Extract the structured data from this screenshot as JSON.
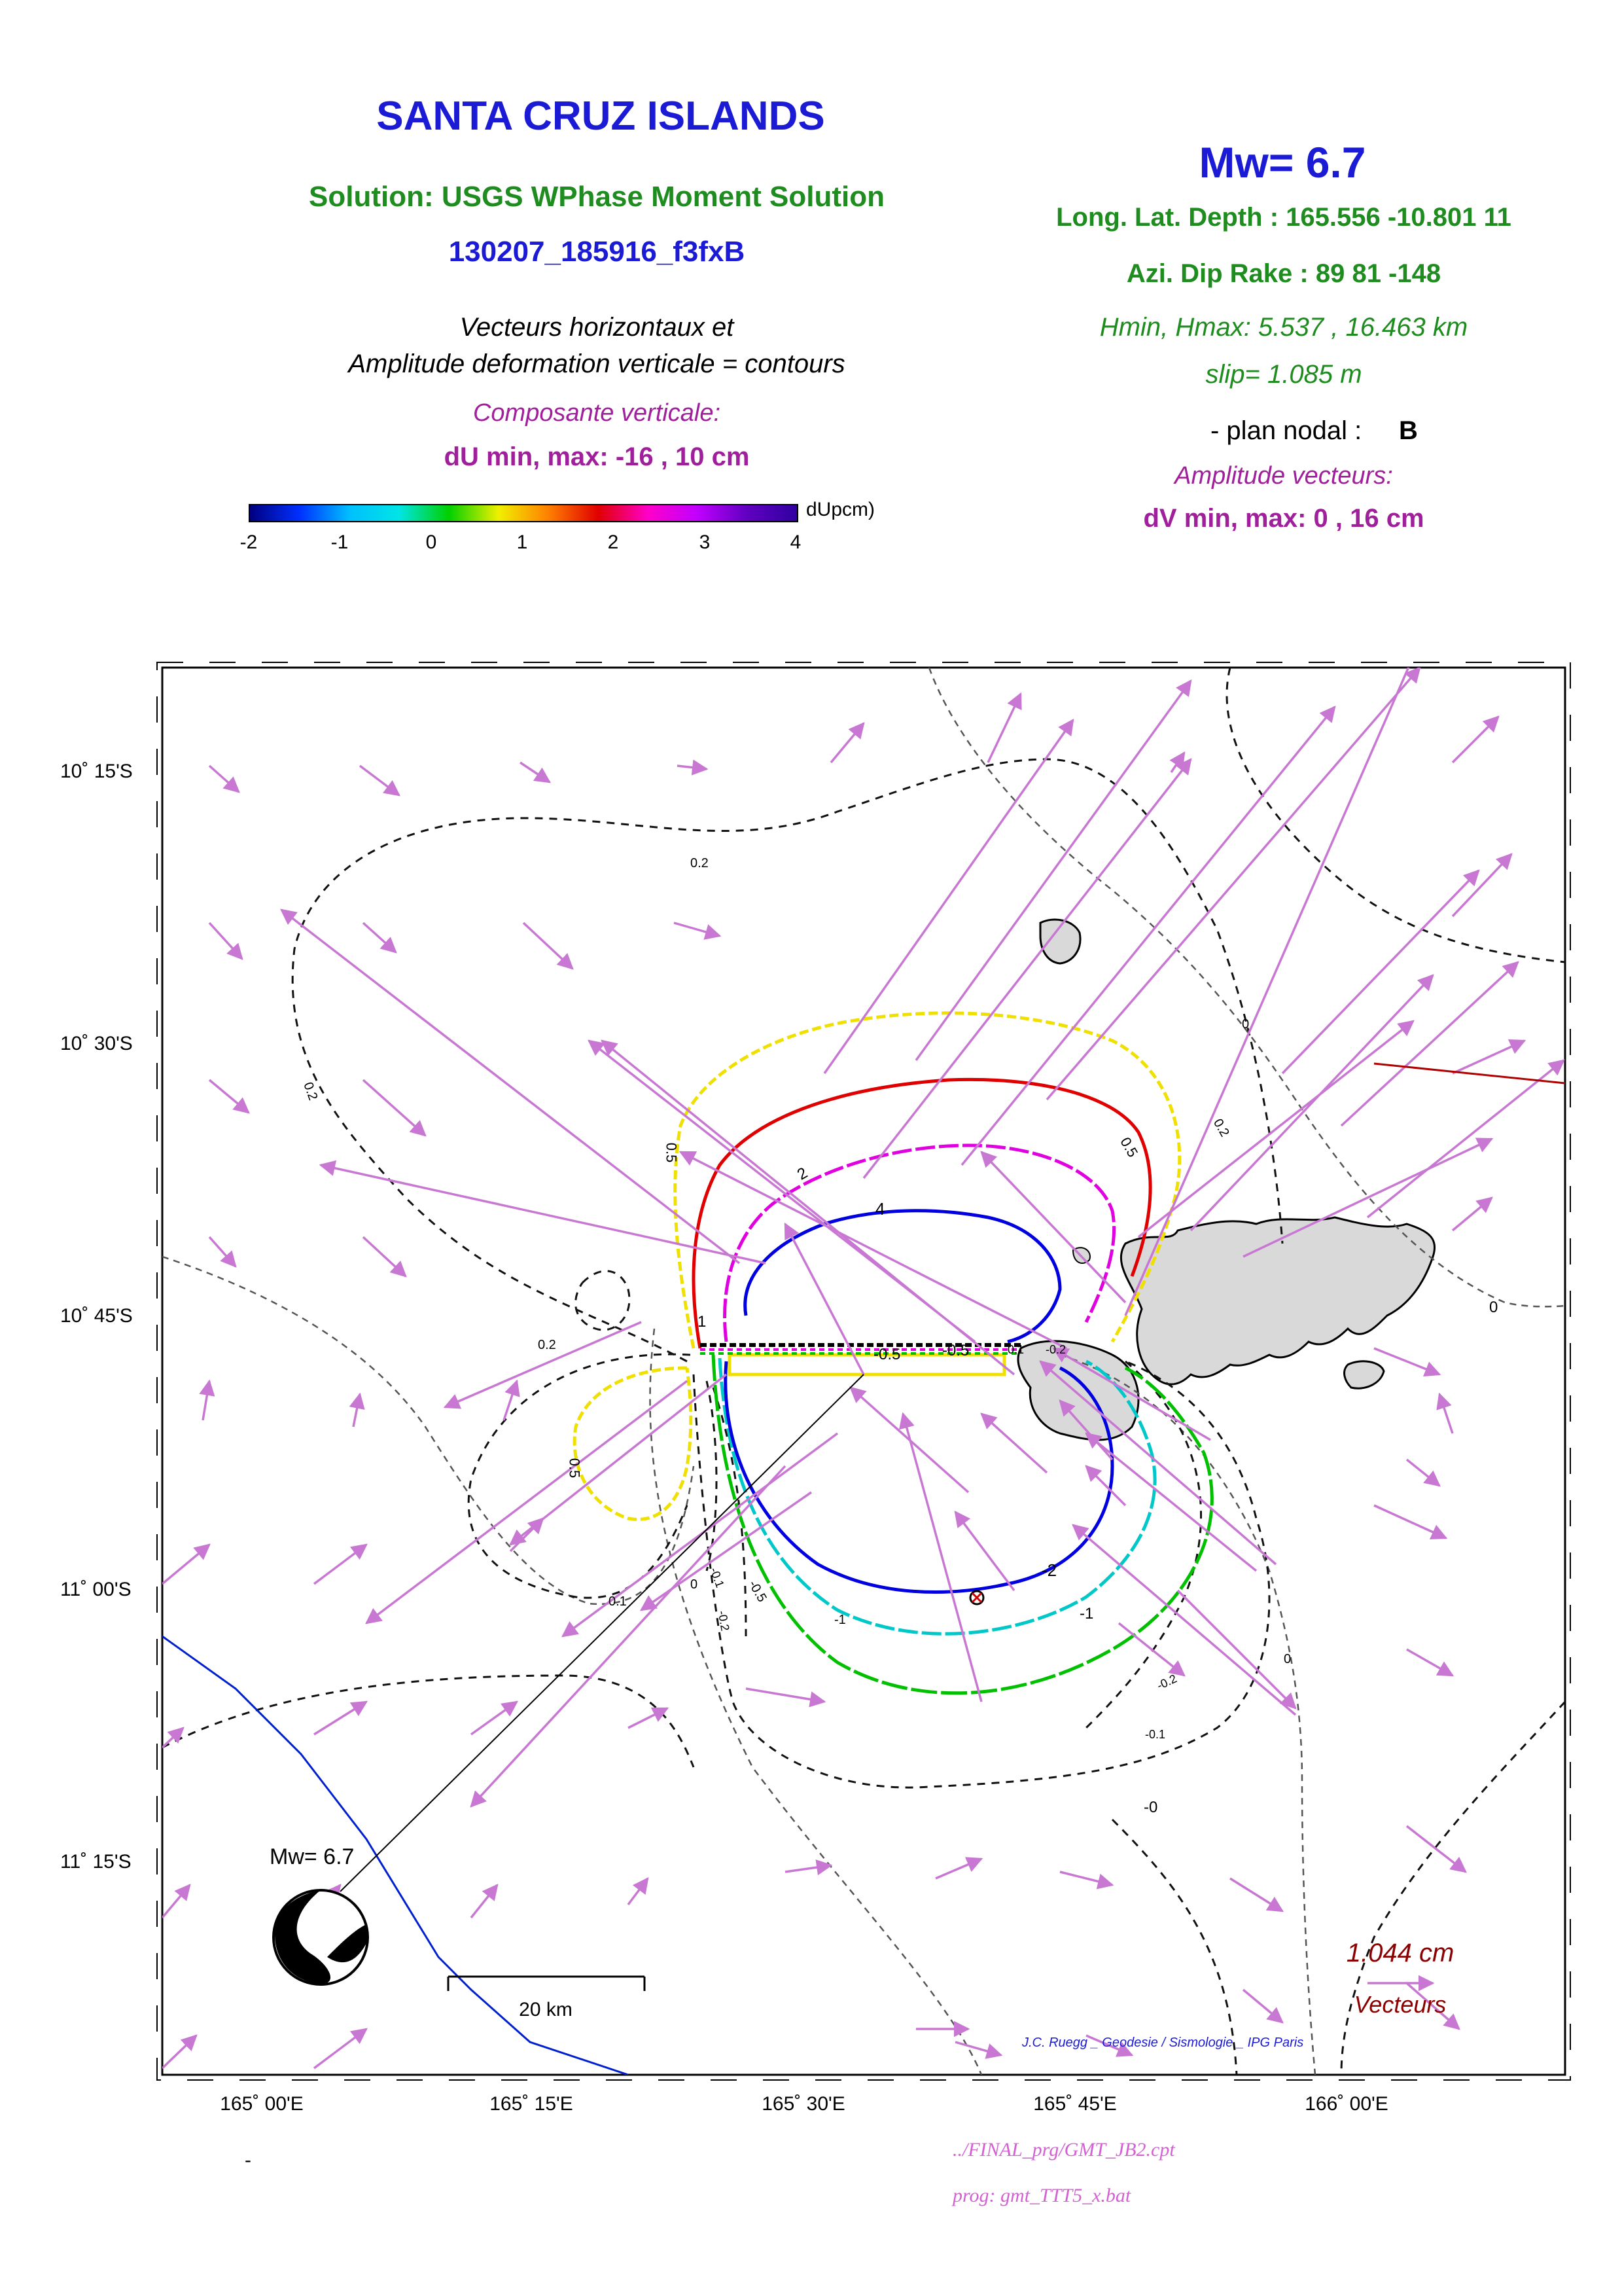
{
  "header": {
    "title": "SANTA CRUZ ISLANDS",
    "solution": "Solution: USGS WPhase Moment Solution",
    "event_id": "130207_185916_f3fxB",
    "desc_line1": "Vecteurs horizontaux et",
    "desc_line2": "Amplitude deformation verticale = contours",
    "vertical_component": "Composante verticale:",
    "du_range": "dU min, max:  -16 , 10 cm"
  },
  "source": {
    "mw": "Mw= 6.7",
    "long_lat_depth": "Long. Lat. Depth : 165.556 -10.801 11",
    "azi_dip_rake": "Azi.  Dip   Rake :  89 81 -148",
    "hmin_hmax": "Hmin, Hmax:  5.537 , 16.463 km",
    "slip": "slip= 1.085 m",
    "plan_nodal_label": "- plan nodal :",
    "plan_nodal_value": "B",
    "amplitude_vectors": "Amplitude vecteurs:",
    "dv_range": "dV min, max:  0 , 16 cm"
  },
  "colorbar": {
    "unit": "dUpcm)",
    "ticks": [
      "-2",
      "-1",
      "0",
      "1",
      "2",
      "3",
      "4"
    ]
  },
  "map": {
    "lat_labels": [
      "10˚ 15'S",
      "10˚ 30'S",
      "10˚ 45'S",
      "11˚ 00'S",
      "11˚ 15'S"
    ],
    "lon_labels": [
      "165˚ 00'E",
      "165˚ 15'E",
      "165˚ 30'E",
      "165˚ 45'E",
      "166˚ 00'E"
    ],
    "contour_labels": {
      "c0_2a": "0.2",
      "c0_2b": "0.2",
      "c0_2c": "0.2",
      "c0_2d": "0.2",
      "c0_5a": "0.5",
      "c0_5b": "0.5",
      "c0_5c": "0.5",
      "c1": "1",
      "c2": "2",
      "c4": "4",
      "cm0_5a": "-0.5",
      "cm0_5b": "-0.5",
      "cm0_5c": "-0.5",
      "cm1": "-1",
      "cm1b": "-1",
      "cm2": "-2",
      "c0a": "0",
      "c0b": "0",
      "c0c": "0",
      "c0d": "0",
      "c0e": "-0",
      "c0_1a": "0.1",
      "c0_1b": "0.1",
      "cm0_1a": "-0.1",
      "cm0_1b": "-0.1",
      "cm0_2a": "-0.2",
      "cm0_2b": "-0.2",
      "cm0_2c": "-0.2"
    },
    "beachball_label": "Mw= 6.7",
    "scale_bar_label": "20 km",
    "vector_scale_value": "1.044  cm",
    "vector_scale_label": "Vecteurs",
    "credit": "J.C. Ruegg _ Geodesie / Sismologie _ IPG Paris"
  },
  "footer": {
    "dash": "-",
    "cpt_file": "../FINAL_prg/GMT_JB2.cpt",
    "prog": "prog: gmt_TTT5_x.bat"
  },
  "colors": {
    "vectors": "#c878d2",
    "contour_pos_1": "#e00000",
    "contour_pos_2": "#e000e0",
    "contour_pos_4": "#0000e0",
    "contour_pos_0_5": "#f0e000",
    "contour_neg_1": "#00c8c8",
    "contour_neg_0_5": "#00c000",
    "land": "#d9d9d9",
    "trench": "#0020d0"
  }
}
